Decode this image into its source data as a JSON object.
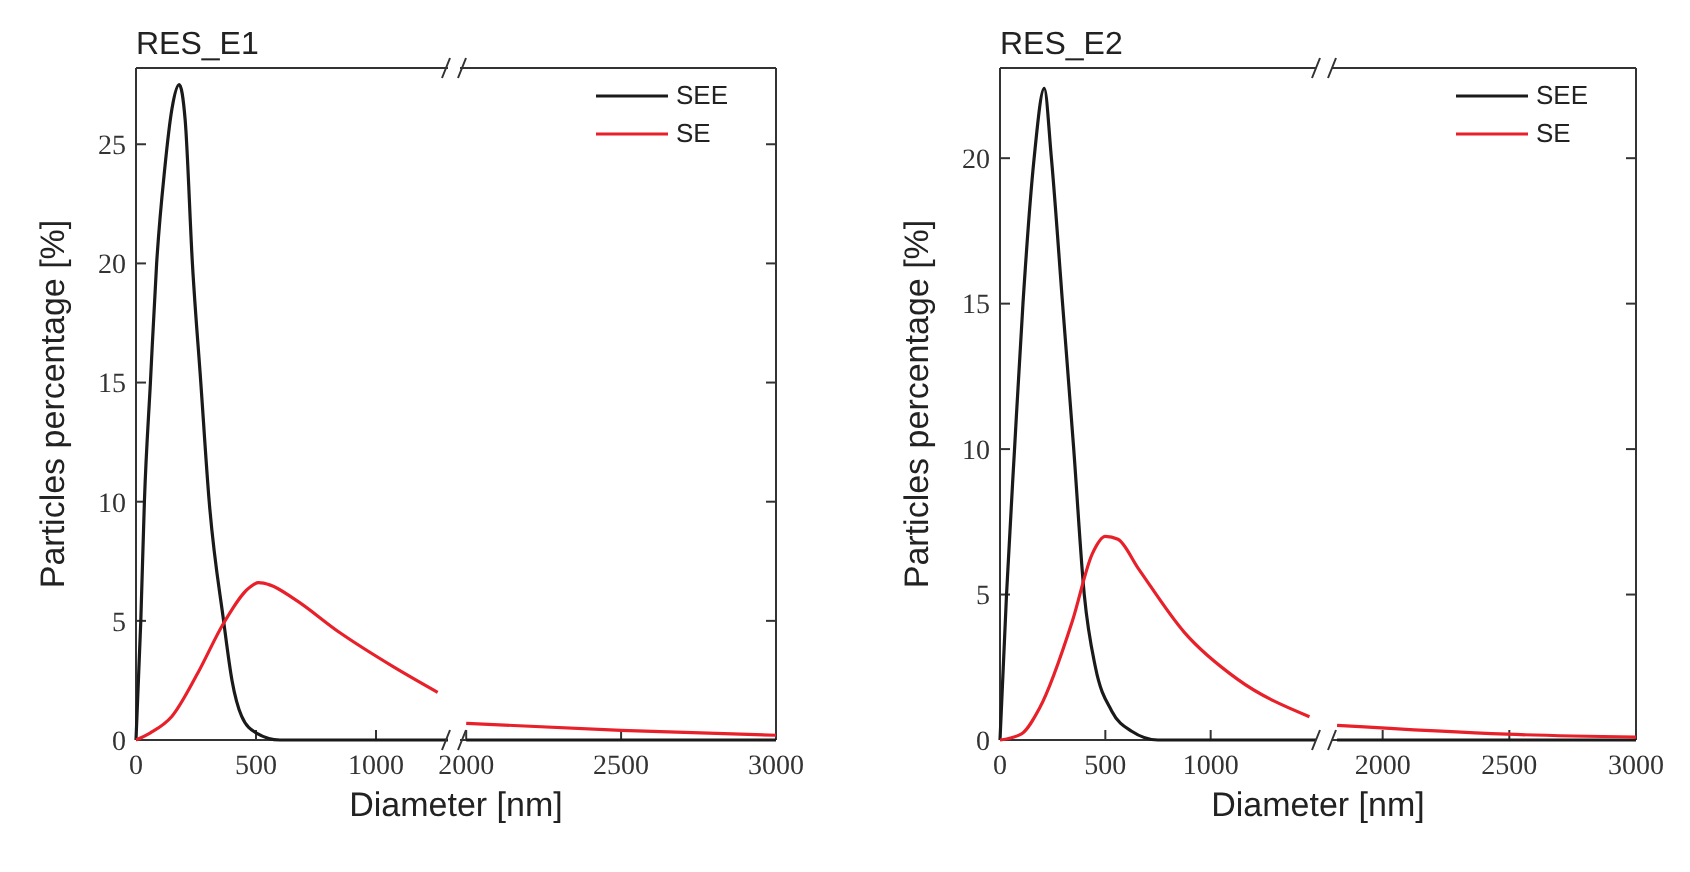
{
  "chart_data": [
    {
      "type": "line",
      "title": "RES_E1",
      "ylabel": "Particles percentage [%]",
      "xlabel": "Diameter [nm]",
      "xlim": [
        0,
        1300
      ],
      "xticks": [
        0,
        500,
        1000
      ],
      "ylim": [
        0,
        28.2
      ],
      "yticks": [
        0,
        5,
        10,
        15,
        20,
        25
      ],
      "series": [
        {
          "color": "#1a1a1a",
          "x": [
            0,
            20,
            35,
            60,
            86,
            120,
            150,
            180,
            205,
            235,
            270,
            305,
            365,
            400,
            440,
            500,
            600,
            700,
            900,
            1300
          ],
          "values": [
            0,
            5,
            10,
            15,
            20,
            24,
            26.5,
            27.5,
            26,
            20,
            15,
            10,
            5,
            2.5,
            1,
            0.3,
            0,
            0,
            0,
            0
          ]
        },
        {
          "color": "#e8202a",
          "x": [
            0,
            60,
            150,
            257,
            365,
            473,
            510,
            560,
            662,
            850,
            1068,
            1257
          ],
          "values": [
            0,
            0.3,
            1,
            2.8,
            4.9,
            6.4,
            6.6,
            6.5,
            5.9,
            4.5,
            3.1,
            2
          ]
        }
      ]
    },
    {
      "type": "line",
      "xlim": [
        1980,
        3000
      ],
      "xticks": [
        2000,
        2500,
        3000
      ],
      "ylim": [
        0,
        28.2
      ],
      "yticks": [
        0,
        5,
        10,
        15,
        20,
        25
      ],
      "tick_labels": "x",
      "legend": "top right",
      "series": [
        {
          "name": "SEE",
          "color": "#1a1a1a",
          "x": [
            2000,
            3000
          ],
          "values": [
            0,
            0
          ]
        },
        {
          "name": "SE",
          "color": "#e8202a",
          "x": [
            2000,
            2500,
            3000
          ],
          "values": [
            0.7,
            0.4,
            0.2
          ]
        }
      ]
    },
    {
      "type": "line",
      "title": "RES_E2",
      "ylabel": "Particles percentage [%]",
      "xlabel": "Diameter [nm]",
      "xlim": [
        0,
        1500
      ],
      "xticks": [
        0,
        500,
        1000
      ],
      "ylim": [
        0,
        23.1
      ],
      "yticks": [
        0,
        5,
        10,
        15,
        20
      ],
      "series": [
        {
          "color": "#1a1a1a",
          "x": [
            0,
            31,
            69,
            109,
            162,
            210,
            244,
            297,
            350,
            400,
            453,
            530,
            625,
            750,
            1000,
            1500
          ],
          "values": [
            0,
            5,
            10,
            15,
            20,
            22.4,
            20,
            15,
            10,
            5,
            2.5,
            1,
            0.3,
            0,
            0,
            0
          ]
        },
        {
          "color": "#e8202a",
          "x": [
            0,
            100,
            188,
            344,
            438,
            500,
            560,
            656,
            875,
            1125,
            1469
          ],
          "values": [
            0,
            0.2,
            1.1,
            4.1,
            6.4,
            7,
            6.9,
            5.9,
            3.7,
            2.1,
            0.8
          ]
        }
      ]
    },
    {
      "type": "line",
      "xlim": [
        1800,
        3000
      ],
      "xticks": [
        2000,
        2500,
        3000
      ],
      "ylim": [
        0,
        23.1
      ],
      "yticks": [
        0,
        5,
        10,
        15,
        20
      ],
      "tick_labels": "x",
      "legend": "top right",
      "series": [
        {
          "name": "SEE",
          "color": "#1a1a1a",
          "x": [
            1820,
            3000
          ],
          "values": [
            0,
            0
          ]
        },
        {
          "name": "SE",
          "color": "#e8202a",
          "x": [
            1820,
            2490,
            3000
          ],
          "values": [
            0.5,
            0.2,
            0.1
          ]
        }
      ]
    }
  ]
}
